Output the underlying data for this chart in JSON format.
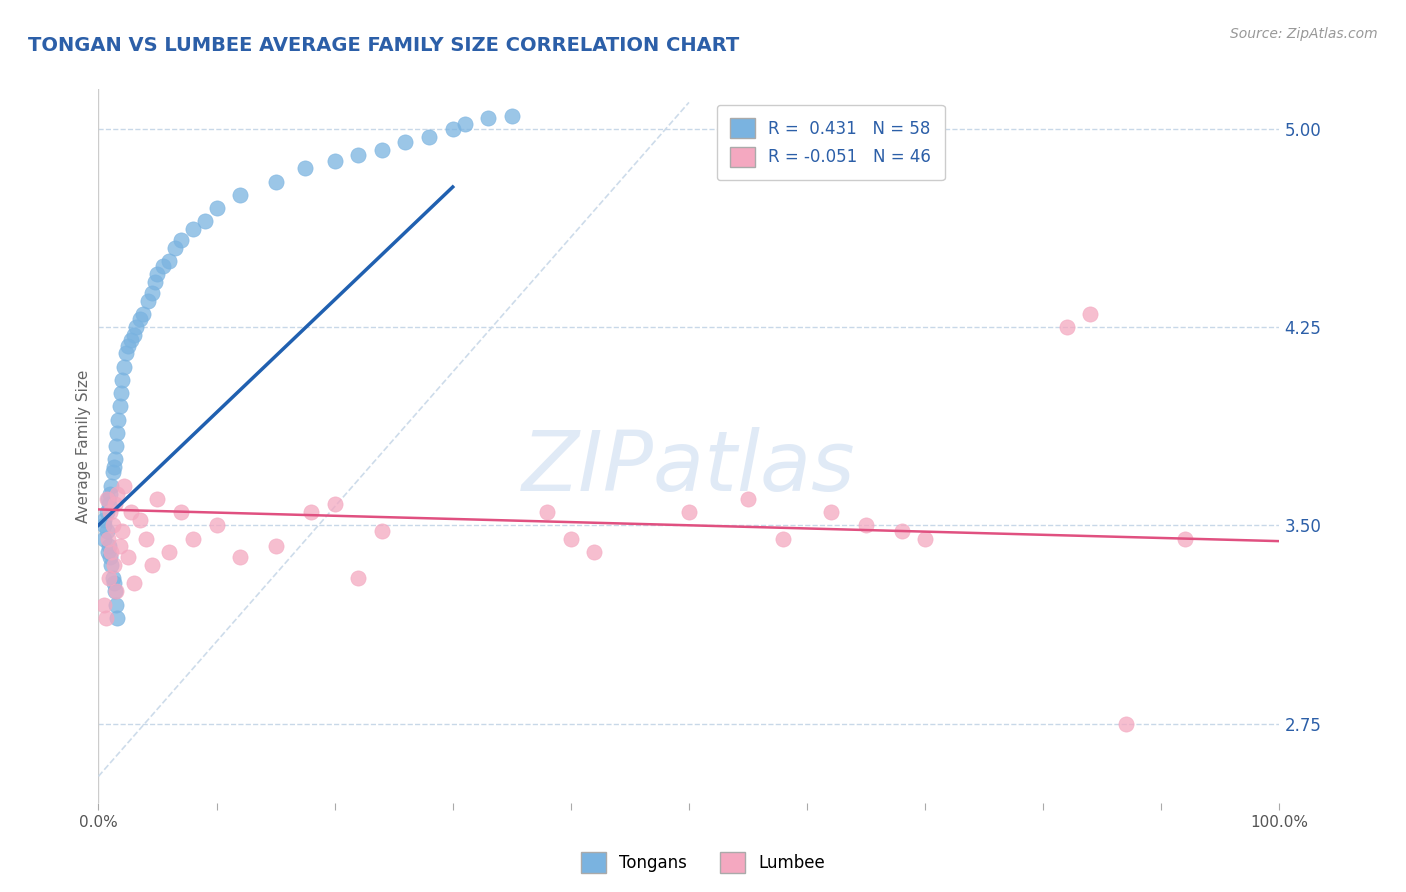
{
  "title": "TONGAN VS LUMBEE AVERAGE FAMILY SIZE CORRELATION CHART",
  "source": "Source: ZipAtlas.com",
  "ylabel": "Average Family Size",
  "xmin": 0.0,
  "xmax": 1.0,
  "ymin": 2.45,
  "ymax": 5.15,
  "right_yticks": [
    2.75,
    3.5,
    4.25,
    5.0
  ],
  "tongan_color": "#7ab3e0",
  "lumbee_color": "#f4a8c0",
  "tongan_line_color": "#2060b0",
  "lumbee_line_color": "#e05080",
  "ref_line_color": "#c8d8e8",
  "legend_R_tongan": "0.431",
  "legend_N_tongan": "58",
  "legend_R_lumbee": "-0.051",
  "legend_N_lumbee": "46",
  "background_color": "#ffffff",
  "grid_color": "#c8d8e8",
  "title_color": "#2c5fa8",
  "axis_label_color": "#666666",
  "right_tick_color": "#2c5fa8",
  "watermark_color": "#ccdcf0",
  "tongan_x": [
    0.005,
    0.005,
    0.005,
    0.007,
    0.007,
    0.008,
    0.008,
    0.009,
    0.009,
    0.01,
    0.01,
    0.011,
    0.011,
    0.012,
    0.012,
    0.013,
    0.013,
    0.014,
    0.014,
    0.015,
    0.015,
    0.016,
    0.016,
    0.017,
    0.018,
    0.019,
    0.02,
    0.022,
    0.023,
    0.025,
    0.028,
    0.03,
    0.032,
    0.035,
    0.038,
    0.042,
    0.045,
    0.048,
    0.05,
    0.055,
    0.06,
    0.065,
    0.07,
    0.08,
    0.09,
    0.1,
    0.12,
    0.15,
    0.175,
    0.2,
    0.22,
    0.24,
    0.26,
    0.28,
    0.3,
    0.31,
    0.33,
    0.35
  ],
  "tongan_y": [
    3.5,
    3.52,
    3.45,
    3.48,
    3.55,
    3.6,
    3.4,
    3.58,
    3.42,
    3.62,
    3.38,
    3.65,
    3.35,
    3.7,
    3.3,
    3.72,
    3.28,
    3.75,
    3.25,
    3.8,
    3.2,
    3.85,
    3.15,
    3.9,
    3.95,
    4.0,
    4.05,
    4.1,
    4.15,
    4.18,
    4.2,
    4.22,
    4.25,
    4.28,
    4.3,
    4.35,
    4.38,
    4.42,
    4.45,
    4.48,
    4.5,
    4.55,
    4.58,
    4.62,
    4.65,
    4.7,
    4.75,
    4.8,
    4.85,
    4.88,
    4.9,
    4.92,
    4.95,
    4.97,
    5.0,
    5.02,
    5.04,
    5.05
  ],
  "lumbee_x": [
    0.005,
    0.006,
    0.007,
    0.008,
    0.009,
    0.01,
    0.011,
    0.012,
    0.013,
    0.014,
    0.015,
    0.016,
    0.018,
    0.02,
    0.022,
    0.025,
    0.028,
    0.03,
    0.035,
    0.04,
    0.045,
    0.05,
    0.06,
    0.07,
    0.08,
    0.1,
    0.12,
    0.15,
    0.18,
    0.2,
    0.22,
    0.24,
    0.38,
    0.4,
    0.42,
    0.5,
    0.55,
    0.58,
    0.62,
    0.65,
    0.68,
    0.7,
    0.82,
    0.84,
    0.87,
    0.92
  ],
  "lumbee_y": [
    3.2,
    3.15,
    3.6,
    3.45,
    3.3,
    3.55,
    3.4,
    3.5,
    3.35,
    3.58,
    3.25,
    3.62,
    3.42,
    3.48,
    3.65,
    3.38,
    3.55,
    3.28,
    3.52,
    3.45,
    3.35,
    3.6,
    3.4,
    3.55,
    3.45,
    3.5,
    3.38,
    3.42,
    3.55,
    3.58,
    3.3,
    3.48,
    3.55,
    3.45,
    3.4,
    3.55,
    3.6,
    3.45,
    3.55,
    3.5,
    3.48,
    3.45,
    4.25,
    4.3,
    2.75,
    3.45
  ]
}
